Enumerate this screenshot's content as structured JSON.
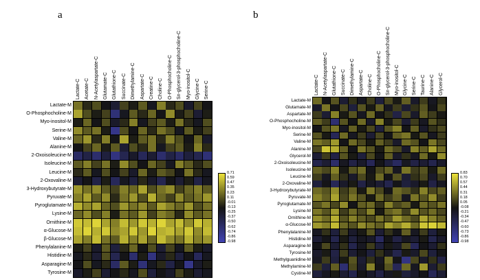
{
  "figure": {
    "background": "#ffffff"
  },
  "chart_data": [
    {
      "type": "heatmap",
      "panel_label": "a",
      "x_labels": [
        "Lactate-C",
        "Acetate-C",
        "N-Acetylaspartate-C",
        "Glutamate-C",
        "Glutathione-C",
        "Succinate-C",
        "Dimethylamine-C",
        "Aspartate-C",
        "Creatine-C",
        "Choline-C",
        "O-Phosphocholine-C",
        "Sn-glycerol-3-phosphocholine-C",
        "Myo-inositol-C",
        "Glycine-C",
        "Serine-C"
      ],
      "y_labels": [
        "Lactate-M",
        "O-Phosphocholine-M",
        "Myo-inositol-M",
        "Serine-M",
        "Valine-M",
        "Alanine-M",
        "2-Oxoisoleucine-M",
        "Isoleucine-M",
        "Leucine-M",
        "2-Oxovaline-M",
        "3-Hydroxybutyrate-M",
        "Pyruvate-M",
        "Pyroglutamate-M",
        "Lysine-M",
        "Ornithine-M",
        "α-Glucose-M",
        "β-Glucose-M",
        "Phenylalanine-M",
        "Histidine-M",
        "Asparagine-M",
        "Tyrosine-M"
      ],
      "vmin": -0.98,
      "vmax": 0.71,
      "colorbar_ticks": [
        "0.71",
        "0.59",
        "0.47",
        "0.35",
        "0.23",
        "0.11",
        "-0.01",
        "-0.13",
        "-0.25",
        "-0.37",
        "-0.50",
        "-0.62",
        "-0.74",
        "-0.86",
        "-0.98"
      ],
      "colormap": {
        "min": "#4143b4",
        "mid": "#141414",
        "max": "#ede33b"
      },
      "legend_position": "right",
      "values": [
        [
          0.25,
          -0.05,
          0.1,
          -0.15,
          -0.3,
          0.05,
          -0.1,
          0.15,
          -0.2,
          0.3,
          -0.05,
          0.1,
          -0.25,
          0.05,
          -0.15
        ],
        [
          0.45,
          0.1,
          -0.1,
          0.05,
          -0.65,
          -0.2,
          0.15,
          -0.05,
          0.2,
          -0.15,
          0.35,
          -0.1,
          0.05,
          -0.3,
          -0.1
        ],
        [
          -0.1,
          0.2,
          -0.15,
          0.1,
          -0.25,
          -0.05,
          0.3,
          -0.2,
          0.05,
          0.15,
          -0.1,
          0.25,
          -0.05,
          -0.2,
          0.1
        ],
        [
          0.35,
          0.15,
          0.25,
          -0.1,
          -0.75,
          0.1,
          -0.15,
          0.2,
          -0.05,
          0.25,
          0.1,
          -0.2,
          0.15,
          -0.1,
          0.05
        ],
        [
          0.2,
          0.4,
          -0.05,
          0.3,
          -0.15,
          0.45,
          -0.1,
          0.15,
          0.25,
          -0.05,
          0.3,
          0.1,
          -0.15,
          0.2,
          -0.25
        ],
        [
          -0.15,
          0.05,
          0.2,
          -0.1,
          0.15,
          -0.3,
          0.1,
          -0.05,
          0.25,
          -0.2,
          0.05,
          0.15,
          -0.1,
          0.3,
          -0.05
        ],
        [
          -0.55,
          -0.4,
          -0.6,
          -0.35,
          -0.7,
          -0.45,
          -0.25,
          -0.5,
          -0.3,
          -0.6,
          -0.4,
          -0.55,
          -0.35,
          -0.45,
          -0.65
        ],
        [
          0.15,
          0.3,
          0.05,
          0.25,
          -0.1,
          0.35,
          0.1,
          -0.15,
          0.2,
          0.05,
          -0.2,
          0.3,
          0.15,
          -0.05,
          0.1
        ],
        [
          -0.05,
          0.15,
          -0.2,
          0.1,
          -0.15,
          0.05,
          -0.25,
          0.2,
          -0.1,
          0.15,
          0.05,
          -0.15,
          0.25,
          -0.05,
          -0.2
        ],
        [
          -0.3,
          -0.15,
          -0.4,
          -0.1,
          -0.5,
          -0.2,
          -0.35,
          -0.05,
          -0.25,
          -0.45,
          -0.15,
          -0.3,
          -0.1,
          -0.4,
          -0.2
        ],
        [
          0.4,
          0.25,
          0.35,
          0.15,
          0.05,
          0.3,
          0.2,
          0.45,
          0.1,
          0.25,
          0.35,
          0.05,
          0.2,
          0.3,
          0.15
        ],
        [
          0.3,
          0.45,
          0.15,
          0.35,
          -0.05,
          0.25,
          0.4,
          0.1,
          0.5,
          0.2,
          0.05,
          0.35,
          0.15,
          0.25,
          0.4
        ],
        [
          0.5,
          0.35,
          0.45,
          0.2,
          0.1,
          0.4,
          0.25,
          0.35,
          0.15,
          0.45,
          0.3,
          0.2,
          0.4,
          0.1,
          0.25
        ],
        [
          0.2,
          0.35,
          0.1,
          0.3,
          -0.1,
          0.25,
          0.15,
          0.4,
          0.05,
          0.3,
          0.2,
          -0.05,
          0.35,
          0.15,
          0.25
        ],
        [
          0.6,
          0.55,
          0.65,
          0.45,
          0.3,
          0.55,
          0.4,
          0.6,
          0.5,
          0.65,
          0.45,
          0.55,
          0.35,
          0.6,
          0.5
        ],
        [
          0.55,
          0.65,
          0.5,
          0.6,
          0.35,
          0.45,
          0.6,
          0.4,
          0.65,
          0.5,
          0.55,
          0.45,
          0.6,
          0.35,
          0.55
        ],
        [
          0.45,
          0.3,
          0.55,
          0.25,
          0.15,
          0.5,
          0.3,
          0.45,
          0.2,
          0.55,
          0.35,
          0.25,
          0.5,
          0.3,
          0.4
        ],
        [
          -0.1,
          0.05,
          -0.25,
          0.15,
          -0.35,
          -0.05,
          0.2,
          -0.15,
          0.1,
          -0.3,
          0.05,
          -0.2,
          0.15,
          -0.1,
          -0.25
        ],
        [
          -0.2,
          -0.05,
          -0.3,
          0.1,
          -0.45,
          -0.15,
          -0.6,
          -0.1,
          -0.7,
          -0.25,
          -0.05,
          -0.35,
          -0.15,
          -0.5,
          -0.2
        ],
        [
          -0.15,
          0.1,
          -0.2,
          -0.05,
          -0.55,
          0.15,
          -0.1,
          -0.65,
          -0.2,
          -0.05,
          -0.4,
          -0.15,
          -0.75,
          -0.25,
          -0.1
        ],
        [
          -0.25,
          -0.1,
          0.05,
          -0.3,
          -0.15,
          -0.05,
          -0.2,
          0.1,
          -0.35,
          -0.15,
          -0.25,
          0.05,
          -0.1,
          -0.3,
          -0.2
        ]
      ]
    },
    {
      "type": "heatmap",
      "panel_label": "b",
      "x_labels": [
        "Lactate-C",
        "N-Acetylaspartate-C",
        "Glutathione-C",
        "Succinate-C",
        "Dimethylamine-C",
        "Aspartate-C",
        "Choline-C",
        "O-Phosphocholine-C",
        "Sn-glycerol-3-phosphocholine-C",
        "Myo-inositol-C",
        "Glycine-C",
        "Serine-C",
        "Taurine-C",
        "Alanine-C",
        "Glycerol-C"
      ],
      "y_labels": [
        "Lactate-M",
        "Glutamate-M",
        "Aspartate-M",
        "O-Phosphocholine-M",
        "Myo-inositol-M",
        "Serine-M",
        "Valine-M",
        "Alanine-M",
        "Glycerol-M",
        "2-Oxoisoleucine-M",
        "Isoleucine-M",
        "Leucine-M",
        "2-Oxovaline-M",
        "3-Hydroxybutyrate-M",
        "Pyruvate-M",
        "Pyroglutamate-M",
        "Lysine-M",
        "Ornithine-M",
        "α-Glucose-M",
        "Phenylalanine-M",
        "Histidine-M",
        "Asparagine-M",
        "Tyrosine-M",
        "Methylguanidine-M",
        "Methylamine-M",
        "Cystine-M"
      ],
      "vmin": -0.98,
      "vmax": 0.83,
      "colorbar_ticks": [
        "0.83",
        "0.70",
        "0.57",
        "0.44",
        "0.31",
        "0.18",
        "0.05",
        "-0.08",
        "-0.21",
        "-0.34",
        "-0.47",
        "-0.60",
        "-0.73",
        "-0.86",
        "-0.98"
      ],
      "colormap": {
        "min": "#4143b4",
        "mid": "#141414",
        "max": "#ede33b"
      },
      "legend_position": "right",
      "values": [
        [
          0.3,
          -0.1,
          0.2,
          -0.25,
          0.05,
          -0.15,
          0.1,
          -0.3,
          0.15,
          -0.05,
          0.25,
          -0.2,
          0.1,
          -0.15,
          0.05
        ],
        [
          -0.2,
          0.35,
          -0.1,
          0.15,
          -0.3,
          0.2,
          -0.05,
          0.25,
          -0.15,
          0.1,
          -0.25,
          0.05,
          0.2,
          -0.1,
          0.15
        ],
        [
          0.1,
          -0.25,
          0.4,
          -0.05,
          0.2,
          -0.15,
          0.3,
          -0.1,
          0.05,
          -0.35,
          0.15,
          -0.2,
          0.25,
          0.1,
          -0.05
        ],
        [
          0.25,
          0.1,
          -0.6,
          0.2,
          -0.1,
          0.3,
          -0.2,
          0.4,
          -0.05,
          0.15,
          -0.25,
          0.1,
          -0.15,
          0.2,
          0.05
        ],
        [
          -0.1,
          0.2,
          0.35,
          -0.15,
          0.25,
          -0.05,
          0.15,
          -0.3,
          0.2,
          0.4,
          -0.1,
          0.25,
          -0.2,
          0.05,
          0.15
        ],
        [
          0.2,
          -0.05,
          -0.45,
          0.3,
          -0.15,
          0.1,
          -0.25,
          0.15,
          -0.1,
          0.25,
          0.35,
          -0.05,
          0.2,
          -0.15,
          0.1
        ],
        [
          0.35,
          0.25,
          0.5,
          -0.1,
          0.3,
          0.15,
          -0.05,
          0.25,
          0.1,
          -0.2,
          0.3,
          0.2,
          -0.1,
          0.35,
          0.15
        ],
        [
          0.15,
          0.7,
          0.6,
          0.25,
          -0.1,
          0.35,
          0.2,
          -0.05,
          0.3,
          0.15,
          -0.2,
          0.4,
          0.25,
          0.55,
          0.3
        ],
        [
          -0.25,
          0.1,
          -0.35,
          0.2,
          -0.05,
          -0.3,
          0.15,
          -0.1,
          0.25,
          -0.2,
          0.05,
          -0.15,
          0.3,
          -0.05,
          0.45
        ],
        [
          -0.4,
          -0.25,
          -0.55,
          -0.15,
          -0.35,
          -0.2,
          -0.45,
          -0.1,
          -0.3,
          -0.5,
          -0.15,
          -0.35,
          -0.25,
          -0.4,
          -0.2
        ],
        [
          0.25,
          0.15,
          0.4,
          -0.05,
          0.2,
          0.3,
          -0.1,
          0.15,
          0.25,
          -0.15,
          0.35,
          0.1,
          0.2,
          -0.05,
          0.3
        ],
        [
          0.1,
          -0.15,
          0.25,
          0.05,
          -0.2,
          0.15,
          -0.05,
          0.3,
          -0.1,
          0.2,
          -0.25,
          0.05,
          0.15,
          -0.2,
          0.1
        ],
        [
          -0.3,
          -0.1,
          -0.45,
          -0.2,
          -0.05,
          -0.35,
          -0.15,
          -0.25,
          -0.4,
          -0.1,
          -0.3,
          -0.2,
          -0.05,
          -0.35,
          -0.15
        ],
        [
          0.3,
          0.2,
          0.45,
          0.1,
          0.25,
          -0.05,
          0.35,
          0.15,
          -0.1,
          0.3,
          0.2,
          0.05,
          0.4,
          0.15,
          0.25
        ],
        [
          0.4,
          0.25,
          0.55,
          0.15,
          0.35,
          0.2,
          -0.05,
          0.3,
          0.1,
          0.25,
          -0.15,
          0.35,
          0.2,
          0.45,
          0.1
        ],
        [
          0.2,
          0.35,
          0.15,
          0.45,
          -0.1,
          0.25,
          0.3,
          0.05,
          0.4,
          0.15,
          0.25,
          -0.05,
          0.3,
          0.2,
          0.35
        ],
        [
          0.35,
          0.2,
          0.5,
          0.1,
          0.3,
          0.15,
          0.4,
          -0.05,
          0.25,
          0.35,
          0.1,
          0.45,
          0.2,
          0.3,
          0.15
        ],
        [
          0.45,
          0.3,
          0.6,
          0.2,
          0.4,
          0.25,
          0.15,
          0.35,
          0.2,
          0.5,
          0.3,
          0.15,
          0.55,
          0.4,
          0.25
        ],
        [
          0.5,
          0.4,
          0.65,
          0.3,
          0.2,
          0.45,
          0.35,
          0.25,
          0.55,
          0.4,
          0.6,
          0.3,
          0.7,
          0.75,
          0.65
        ],
        [
          -0.15,
          0.05,
          -0.3,
          0.1,
          -0.2,
          -0.05,
          0.2,
          -0.25,
          0.05,
          -0.1,
          0.25,
          -0.15,
          0.1,
          -0.3,
          -0.05
        ],
        [
          -0.25,
          -0.1,
          -0.4,
          -0.05,
          -0.3,
          -0.15,
          -0.2,
          -0.5,
          -0.1,
          -0.35,
          -0.15,
          -0.25,
          -0.05,
          -0.4,
          -0.2
        ],
        [
          -0.1,
          0.15,
          -0.25,
          0.05,
          -0.4,
          -0.15,
          0.1,
          -0.3,
          -0.05,
          -0.2,
          0.15,
          -0.45,
          -0.1,
          -0.25,
          0.05
        ],
        [
          -0.2,
          -0.05,
          -0.35,
          0.1,
          -0.25,
          -0.1,
          -0.3,
          0.05,
          -0.15,
          -0.4,
          -0.05,
          -0.2,
          0.15,
          -0.3,
          -0.1
        ],
        [
          -0.15,
          0.1,
          -0.3,
          -0.05,
          0.2,
          -0.25,
          0.05,
          -0.15,
          0.3,
          -0.1,
          -0.7,
          0.15,
          -0.2,
          0.05,
          -0.35
        ],
        [
          0.1,
          -0.3,
          0.25,
          -0.6,
          0.15,
          -0.2,
          0.4,
          -0.1,
          0.2,
          -0.45,
          0.3,
          -0.15,
          0.5,
          -0.25,
          0.1
        ],
        [
          -0.3,
          -0.15,
          -0.05,
          -0.25,
          -0.4,
          -0.1,
          -0.2,
          -0.35,
          -0.15,
          -0.05,
          -0.3,
          -0.2,
          -0.1,
          -0.45,
          -0.25
        ]
      ]
    }
  ]
}
